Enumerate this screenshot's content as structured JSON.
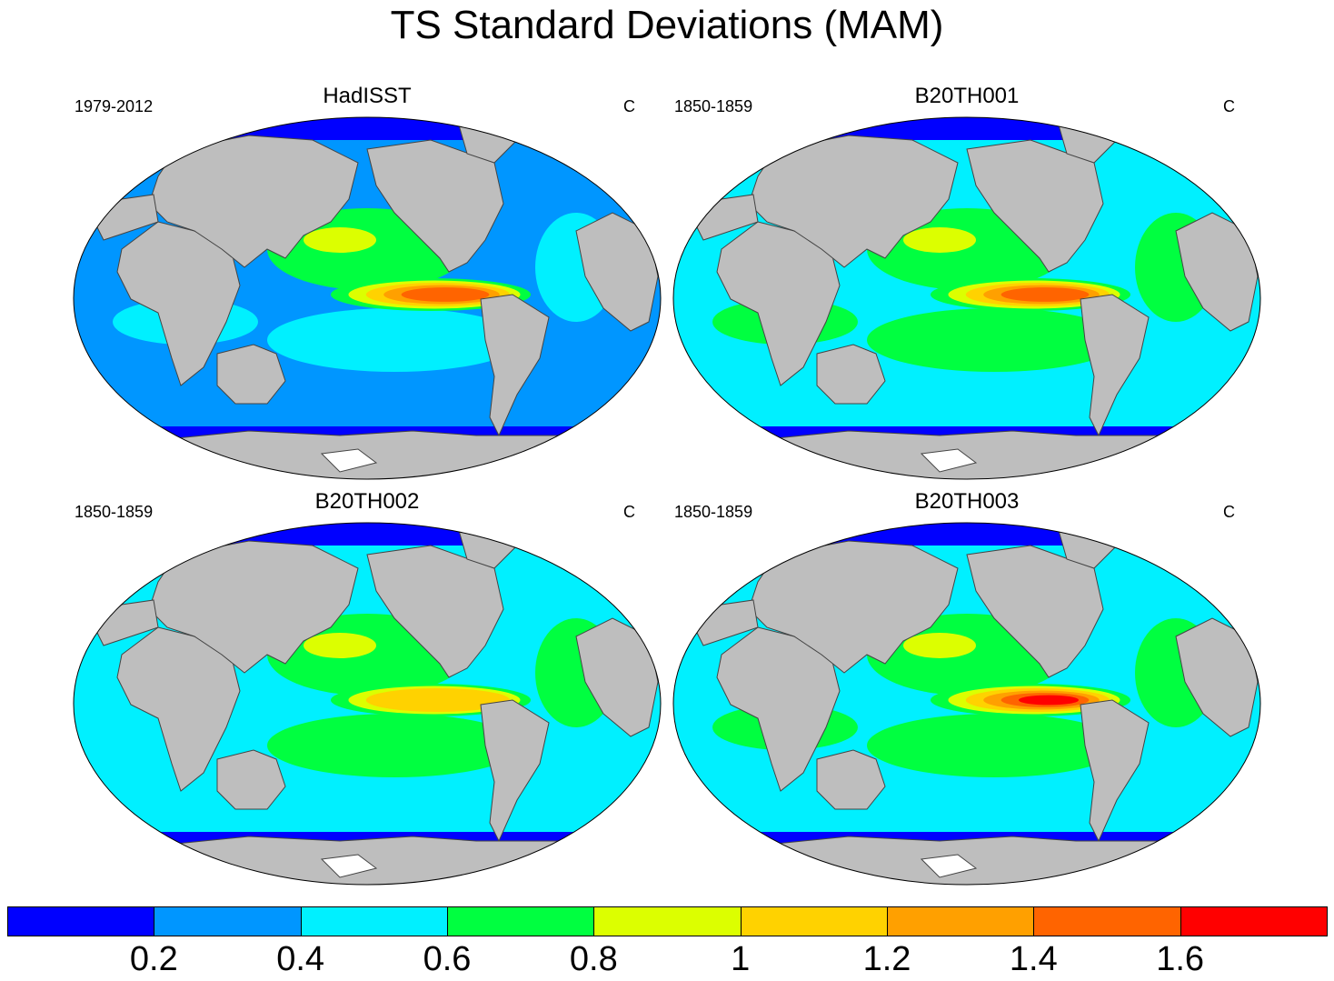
{
  "title": "TS Standard Deviations (MAM)",
  "colors": {
    "land": "#bebebe",
    "ice": "#ffffff",
    "coast": "#444444",
    "levels": [
      "#0000ff",
      "#0096ff",
      "#00f0ff",
      "#00ff40",
      "#dcff00",
      "#ffd200",
      "#ffa000",
      "#ff6400",
      "#ff0000"
    ]
  },
  "panels": [
    {
      "title": "HadISST",
      "left_label": "1979-2012",
      "right_label": "C",
      "enso": 1.4,
      "base": 0.35
    },
    {
      "title": "B20TH001",
      "left_label": "1850-1859",
      "right_label": "C",
      "enso": 1.5,
      "base": 0.5
    },
    {
      "title": "B20TH002",
      "left_label": "1850-1859",
      "right_label": "C",
      "enso": 1.1,
      "base": 0.4
    },
    {
      "title": "B20TH003",
      "left_label": "1850-1859",
      "right_label": "C",
      "enso": 1.7,
      "base": 0.5
    }
  ],
  "colorbar": {
    "labels": [
      "0.2",
      "0.4",
      "0.6",
      "0.8",
      "1",
      "1.2",
      "1.4",
      "1.6"
    ],
    "levels": [
      0.2,
      0.4,
      0.6,
      0.8,
      1.0,
      1.2,
      1.4,
      1.6
    ]
  }
}
